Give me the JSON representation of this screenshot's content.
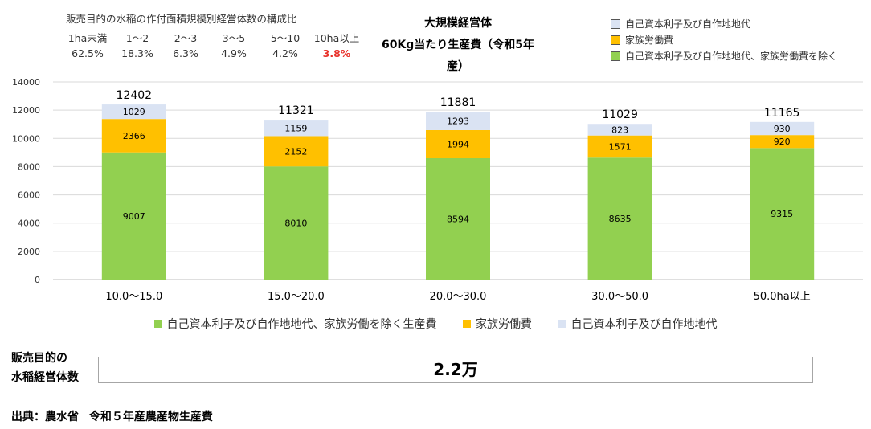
{
  "distribution": {
    "title": "販売目的の水稲の作付面積規模別経営体数の構成比",
    "headers": [
      "1ha未満",
      "1～2",
      "2～3",
      "3～5",
      "5～10",
      "10ha以上"
    ],
    "values": [
      "62.5%",
      "18.3%",
      "6.3%",
      "4.9%",
      "4.2%",
      "3.8%"
    ],
    "highlight_color": "#e8312a"
  },
  "title_lines": [
    "大規模経営体",
    "60Kg当たり生産費（令和5年産）"
  ],
  "top_legend": [
    {
      "label": "自己資本利子及び自作地地代",
      "color": "#dae3f3"
    },
    {
      "label": "家族労働費",
      "color": "#ffc000"
    },
    {
      "label": "自己資本利子及び自作地地代、家族労働費を除く",
      "color": "#92d050"
    }
  ],
  "chart_data": {
    "type": "bar",
    "stacked": true,
    "categories": [
      "10.0～15.0",
      "15.0～20.0",
      "20.0～30.0",
      "30.0～50.0",
      "50.0ha以上"
    ],
    "series": [
      {
        "name": "自己資本利子及び自作地地代、家族労働を除く生産費",
        "color": "#92d050",
        "values": [
          9007,
          8010,
          8594,
          8635,
          9315
        ]
      },
      {
        "name": "家族労働費",
        "color": "#ffc000",
        "values": [
          2366,
          2152,
          1994,
          1571,
          920
        ]
      },
      {
        "name": "自己資本利子及び自作地地代",
        "color": "#dae3f3",
        "values": [
          1029,
          1159,
          1293,
          823,
          930
        ]
      }
    ],
    "totals": [
      12402,
      11321,
      11881,
      11029,
      11165
    ],
    "ylim": [
      0,
      14000
    ],
    "yticks": [
      0,
      2000,
      4000,
      6000,
      8000,
      10000,
      12000,
      14000
    ],
    "grid": true,
    "legend_position": "bottom"
  },
  "farm_count": {
    "label_lines": [
      "販売目的の",
      "水稲経営体数"
    ],
    "value": "2.2万"
  },
  "source": {
    "label": "出典：農水省",
    "text": "令和５年産農産物生産費"
  }
}
